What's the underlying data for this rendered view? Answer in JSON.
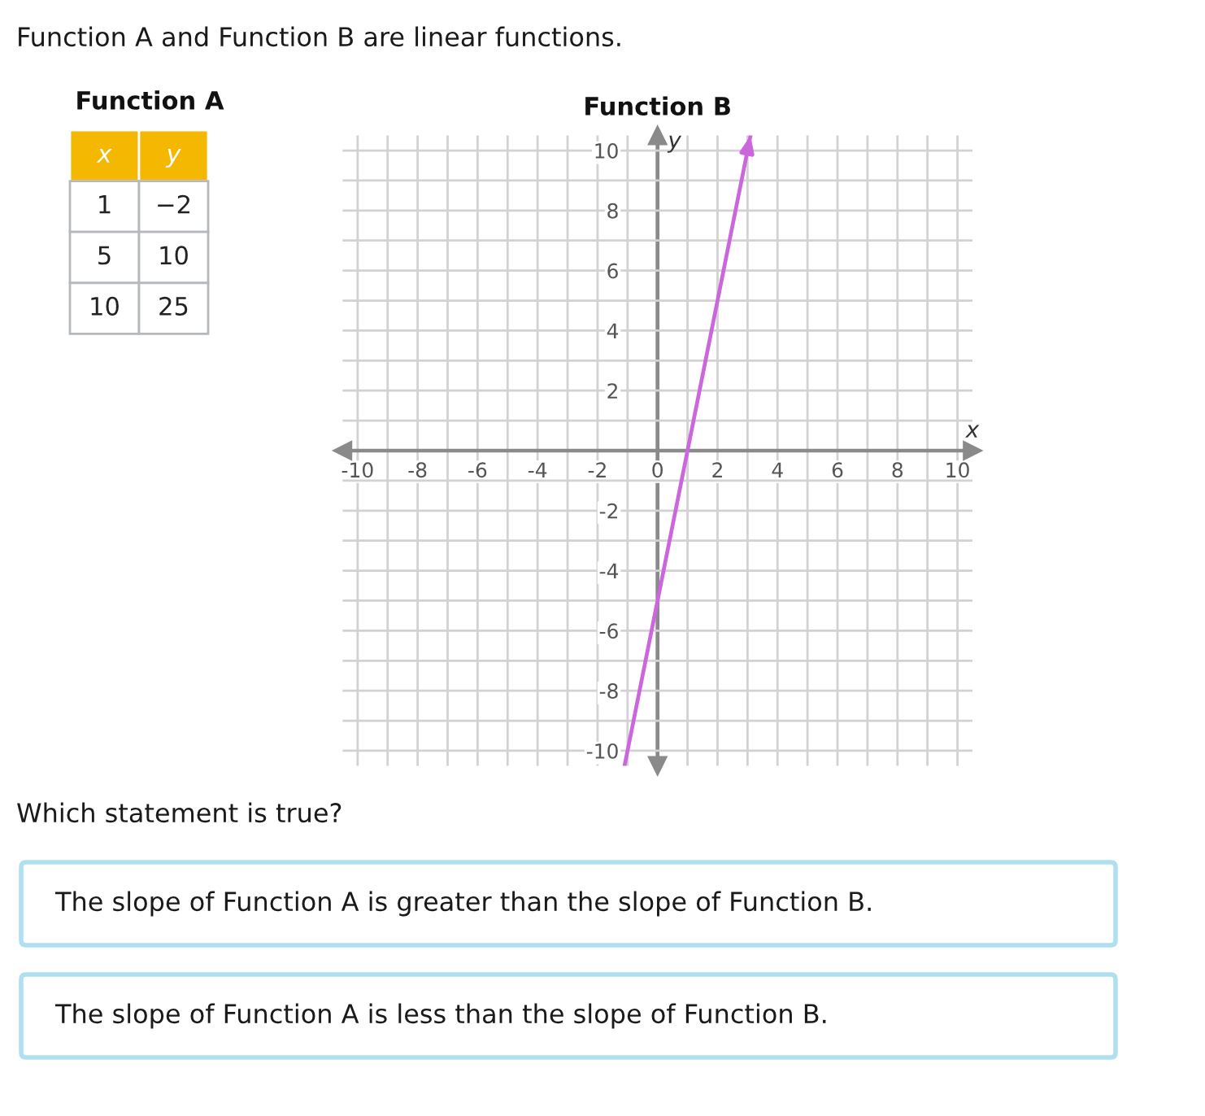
{
  "chart_data": [
    {
      "type": "other",
      "title": "Function A and Function B are linear functions."
    },
    {
      "type": "other",
      "title": "Function A",
      "annotations": [
        "x",
        "y",
        "1",
        "−2",
        "5",
        "10",
        "10",
        "25"
      ]
    },
    {
      "type": "line",
      "title": "Function B",
      "xlabel": "x",
      "ylabel": "y",
      "series": [
        {
          "color": "#cc66dd",
          "x": [
            -1.1,
            3.1
          ],
          "values": [
            -10.5,
            10.5
          ]
        }
      ],
      "xlim": [
        -10.5,
        10.5
      ],
      "ylim": [
        -10.5,
        10.5
      ],
      "xticks": [
        -10,
        {
          "value": -9,
          "label": null
        },
        -8,
        {
          "value": -7,
          "label": null
        },
        -6,
        {
          "value": -5,
          "label": null
        },
        -4,
        {
          "value": -3,
          "label": null
        },
        -2,
        {
          "value": -1,
          "label": null
        },
        0,
        {
          "value": 1,
          "label": null
        },
        2,
        {
          "value": 3,
          "label": null
        },
        4,
        {
          "value": 5,
          "label": null
        },
        6,
        {
          "value": 7,
          "label": null
        },
        8,
        {
          "value": 9,
          "label": null
        },
        10
      ],
      "yticks": [
        -10,
        {
          "value": -9,
          "label": null
        },
        -8,
        {
          "value": -7,
          "label": null
        },
        -6,
        {
          "value": -5,
          "label": null
        },
        -4,
        {
          "value": -3,
          "label": null
        },
        -2,
        {
          "value": -1,
          "label": null
        },
        {
          "value": 0,
          "label": null
        },
        {
          "value": 1,
          "label": null
        },
        2,
        {
          "value": 3,
          "label": null
        },
        4,
        {
          "value": 5,
          "label": null
        },
        6,
        {
          "value": 7,
          "label": null
        },
        8,
        {
          "value": 9,
          "label": null
        },
        10
      ],
      "grid": true,
      "line_style": "solid"
    },
    {
      "type": "other",
      "title": "Which statement is true?",
      "annotations": [
        "The slope of Function A is greater than the slope of Function B.",
        "The slope of Function A is less than the slope of Function B."
      ]
    }
  ]
}
